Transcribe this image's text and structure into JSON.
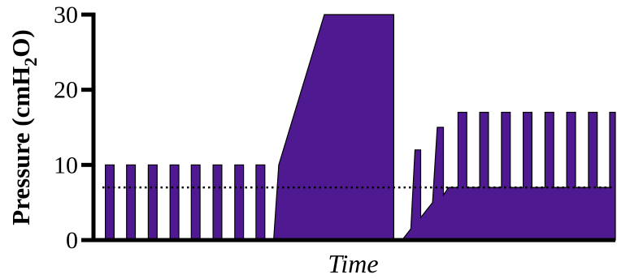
{
  "chart_data": {
    "type": "area",
    "title": "",
    "xlabel": "Time",
    "ylabel": "Pressure (cmH₂O)",
    "ylabel_parts": {
      "main": "Pressure (cmH",
      "sub": "2",
      "end": "O)"
    },
    "ylim": [
      0,
      30
    ],
    "yticks": [
      0,
      10,
      20,
      30
    ],
    "ytick_labels": [
      "0",
      "10",
      "20",
      "30"
    ],
    "xlim": [
      0,
      100
    ],
    "grid": false,
    "legend": "none",
    "reference_line": {
      "y": 7,
      "style": "dotted",
      "color": "#000000"
    },
    "fill_color": "#4f1a91",
    "series": [
      {
        "points": [
          [
            0,
            0
          ],
          [
            1.5,
            0
          ],
          [
            1.5,
            10
          ],
          [
            3.2,
            10
          ],
          [
            3.2,
            0
          ],
          [
            5.6,
            0
          ],
          [
            5.6,
            10
          ],
          [
            7.3,
            10
          ],
          [
            7.3,
            0
          ],
          [
            9.8,
            0
          ],
          [
            9.8,
            10
          ],
          [
            11.5,
            10
          ],
          [
            11.5,
            0
          ],
          [
            14.0,
            0
          ],
          [
            14.0,
            10
          ],
          [
            15.7,
            10
          ],
          [
            15.7,
            0
          ],
          [
            18.1,
            0
          ],
          [
            18.1,
            10
          ],
          [
            19.8,
            10
          ],
          [
            19.8,
            0
          ],
          [
            22.3,
            0
          ],
          [
            22.3,
            10
          ],
          [
            24.0,
            10
          ],
          [
            24.0,
            0
          ],
          [
            26.5,
            0
          ],
          [
            26.5,
            10
          ],
          [
            28.2,
            10
          ],
          [
            28.2,
            0
          ],
          [
            30.6,
            0
          ],
          [
            30.6,
            10
          ],
          [
            32.3,
            10
          ],
          [
            32.3,
            0
          ],
          [
            34.0,
            0
          ],
          [
            35.0,
            10
          ],
          [
            43.8,
            30
          ],
          [
            57.2,
            30
          ],
          [
            57.2,
            0
          ],
          [
            58.8,
            0
          ],
          [
            60.5,
            1.5
          ],
          [
            61.3,
            12
          ],
          [
            62.4,
            12
          ],
          [
            62.4,
            3
          ],
          [
            64.7,
            5
          ],
          [
            65.6,
            15
          ],
          [
            66.8,
            15
          ],
          [
            66.8,
            6
          ],
          [
            67.8,
            7
          ],
          [
            69.6,
            7
          ],
          [
            69.6,
            17
          ],
          [
            71.3,
            17
          ],
          [
            71.3,
            7
          ],
          [
            73.8,
            7
          ],
          [
            73.8,
            17
          ],
          [
            75.5,
            17
          ],
          [
            75.5,
            7
          ],
          [
            78.0,
            7
          ],
          [
            78.0,
            17
          ],
          [
            79.7,
            17
          ],
          [
            79.7,
            7
          ],
          [
            82.2,
            7
          ],
          [
            82.2,
            17
          ],
          [
            83.9,
            17
          ],
          [
            83.9,
            7
          ],
          [
            86.4,
            7
          ],
          [
            86.4,
            17
          ],
          [
            88.1,
            17
          ],
          [
            88.1,
            7
          ],
          [
            90.6,
            7
          ],
          [
            90.6,
            17
          ],
          [
            92.3,
            17
          ],
          [
            92.3,
            7
          ],
          [
            94.8,
            7
          ],
          [
            94.8,
            17
          ],
          [
            96.5,
            17
          ],
          [
            96.5,
            7
          ],
          [
            98.9,
            7
          ],
          [
            98.9,
            17
          ],
          [
            100,
            17
          ],
          [
            100,
            7
          ],
          [
            100,
            0
          ]
        ]
      }
    ]
  }
}
